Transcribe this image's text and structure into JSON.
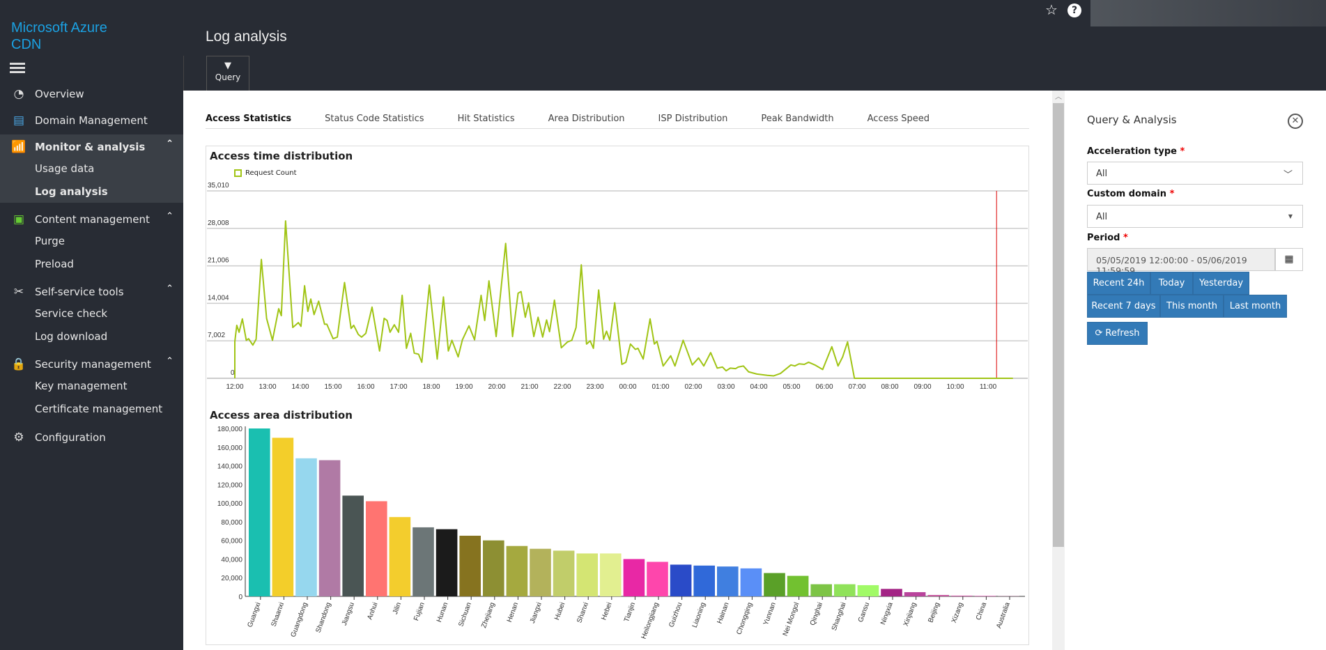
{
  "app": {
    "logo": "Microsoft Azure CDN",
    "page_title": "Log analysis",
    "query_label": "Query"
  },
  "sidebar": {
    "overview": "Overview",
    "domain": "Domain Management",
    "monitor": "Monitor & analysis",
    "usage": "Usage data",
    "log_analysis": "Log analysis",
    "content": "Content management",
    "purge": "Purge",
    "preload": "Preload",
    "self_service": "Self-service tools",
    "service_check": "Service check",
    "log_download": "Log download",
    "security": "Security management",
    "key": "Key management",
    "cert": "Certificate management",
    "config": "Configuration"
  },
  "tabs": [
    "Access Statistics",
    "Status Code Statistics",
    "Hit Statistics",
    "Area Distribution",
    "ISP Distribution",
    "Peak Bandwidth",
    "Access Speed"
  ],
  "panel": {
    "title": "Query & Analysis",
    "accel_label": "Acceleration type",
    "accel_value": "All",
    "domain_label": "Custom domain",
    "domain_value": "All",
    "period_label": "Period",
    "req": "*",
    "period_value": "05/05/2019 12:00:00 - 05/06/2019 11:59:59",
    "quick": [
      "Recent 24h",
      "Today",
      "Yesterday",
      "Recent 7 days",
      "This month",
      "Last month"
    ],
    "refresh": "Refresh",
    "accent": "#337ab7"
  },
  "chart_data": [
    {
      "type": "line",
      "title": "Access time distribution",
      "legend": [
        "Request Count"
      ],
      "color": "#a0c414",
      "yticks": [
        "0",
        "7,002",
        "14,004",
        "21,006",
        "28,008",
        "35,010"
      ],
      "ylim": [
        0,
        35010
      ],
      "xticks": [
        "12:00",
        "13:00",
        "14:00",
        "15:00",
        "16:00",
        "17:00",
        "18:00",
        "19:00",
        "20:00",
        "21:00",
        "22:00",
        "23:00",
        "00:00",
        "01:00",
        "02:00",
        "03:00",
        "04:00",
        "05:00",
        "06:00",
        "07:00",
        "08:00",
        "09:00",
        "10:00",
        "11:00"
      ],
      "x_unit": "hours since 12:00",
      "marker_hour": 23.26,
      "points": [
        [
          0,
          0
        ],
        [
          0,
          6870
        ],
        [
          0.06,
          9900
        ],
        [
          0.13,
          8600
        ],
        [
          0.23,
          11100
        ],
        [
          0.35,
          7100
        ],
        [
          0.42,
          7400
        ],
        [
          0.55,
          6200
        ],
        [
          0.65,
          7300
        ],
        [
          0.81,
          22200
        ],
        [
          0.97,
          11200
        ],
        [
          1.15,
          7100
        ],
        [
          1.34,
          13000
        ],
        [
          1.42,
          11700
        ],
        [
          1.55,
          29400
        ],
        [
          1.77,
          9500
        ],
        [
          1.94,
          10400
        ],
        [
          2.02,
          9700
        ],
        [
          2.13,
          17300
        ],
        [
          2.23,
          12500
        ],
        [
          2.32,
          14800
        ],
        [
          2.42,
          11900
        ],
        [
          2.56,
          14400
        ],
        [
          2.74,
          10100
        ],
        [
          2.81,
          10100
        ],
        [
          3.0,
          7400
        ],
        [
          3.13,
          7700
        ],
        [
          3.35,
          17900
        ],
        [
          3.55,
          9300
        ],
        [
          3.63,
          9900
        ],
        [
          3.77,
          8200
        ],
        [
          3.87,
          7700
        ],
        [
          4.0,
          8400
        ],
        [
          4.19,
          13300
        ],
        [
          4.42,
          5100
        ],
        [
          4.56,
          11200
        ],
        [
          4.65,
          10800
        ],
        [
          4.74,
          8600
        ],
        [
          4.87,
          10000
        ],
        [
          5.0,
          8600
        ],
        [
          5.11,
          15500
        ],
        [
          5.24,
          5600
        ],
        [
          5.37,
          8400
        ],
        [
          5.48,
          4700
        ],
        [
          5.61,
          4500
        ],
        [
          5.71,
          3000
        ],
        [
          5.94,
          17400
        ],
        [
          6.18,
          3600
        ],
        [
          6.37,
          15200
        ],
        [
          6.52,
          5100
        ],
        [
          6.63,
          7100
        ],
        [
          6.82,
          4000
        ],
        [
          6.95,
          7200
        ],
        [
          7.15,
          9800
        ],
        [
          7.32,
          7200
        ],
        [
          7.52,
          15500
        ],
        [
          7.63,
          10800
        ],
        [
          7.76,
          18200
        ],
        [
          7.98,
          7800
        ],
        [
          8.27,
          25200
        ],
        [
          8.48,
          7800
        ],
        [
          8.65,
          15900
        ],
        [
          8.74,
          16200
        ],
        [
          8.87,
          11400
        ],
        [
          8.97,
          14100
        ],
        [
          9.13,
          7800
        ],
        [
          9.26,
          11400
        ],
        [
          9.4,
          7700
        ],
        [
          9.52,
          10900
        ],
        [
          9.61,
          8700
        ],
        [
          9.76,
          14600
        ],
        [
          9.97,
          5700
        ],
        [
          10.16,
          6800
        ],
        [
          10.29,
          7100
        ],
        [
          10.42,
          9500
        ],
        [
          10.58,
          21200
        ],
        [
          10.74,
          6400
        ],
        [
          10.85,
          7000
        ],
        [
          10.95,
          5600
        ],
        [
          11.11,
          16500
        ],
        [
          11.26,
          7300
        ],
        [
          11.35,
          8800
        ],
        [
          11.45,
          7100
        ],
        [
          11.6,
          14100
        ],
        [
          11.82,
          2600
        ],
        [
          11.94,
          3000
        ],
        [
          12.08,
          6400
        ],
        [
          12.23,
          5400
        ],
        [
          12.31,
          5600
        ],
        [
          12.47,
          3600
        ],
        [
          12.68,
          11100
        ],
        [
          12.81,
          6400
        ],
        [
          12.89,
          6900
        ],
        [
          13.08,
          2300
        ],
        [
          13.31,
          4200
        ],
        [
          13.44,
          2300
        ],
        [
          13.69,
          7100
        ],
        [
          13.97,
          2500
        ],
        [
          14.16,
          3800
        ],
        [
          14.32,
          2300
        ],
        [
          14.53,
          4800
        ],
        [
          14.73,
          1900
        ],
        [
          14.89,
          2100
        ],
        [
          15.0,
          1400
        ],
        [
          15.13,
          1900
        ],
        [
          15.29,
          1800
        ],
        [
          15.37,
          2100
        ],
        [
          15.53,
          2300
        ],
        [
          15.69,
          1200
        ],
        [
          15.94,
          800
        ],
        [
          16.26,
          550
        ],
        [
          16.45,
          450
        ],
        [
          16.66,
          900
        ],
        [
          16.98,
          2500
        ],
        [
          17.1,
          2300
        ],
        [
          17.23,
          2700
        ],
        [
          17.39,
          2600
        ],
        [
          17.52,
          3000
        ],
        [
          17.71,
          2500
        ],
        [
          17.95,
          1650
        ],
        [
          18.23,
          5900
        ],
        [
          18.42,
          2300
        ],
        [
          18.56,
          4000
        ],
        [
          18.71,
          6800
        ],
        [
          18.92,
          0
        ],
        [
          23.76,
          0
        ]
      ]
    },
    {
      "type": "bar",
      "title": "Access area distribution",
      "ylim": [
        0,
        180000
      ],
      "yticks": [
        "0",
        "20,000",
        "40,000",
        "60,000",
        "80,000",
        "100,000",
        "120,000",
        "140,000",
        "160,000",
        "180,000"
      ],
      "categories": [
        "Guangxi",
        "Shaanxi",
        "Guangdong",
        "Shandong",
        "Jiangsu",
        "Anhui",
        "Jilin",
        "Fujian",
        "Hunan",
        "Sichuan",
        "Zhejiang",
        "Henan",
        "Jiangxi",
        "Hubei",
        "Shanxi",
        "Hebei",
        "Tianjin",
        "Heilongjiang",
        "Guizhou",
        "Liaoning",
        "Hainan",
        "Chongqing",
        "Yunnan",
        "Nei Mongol",
        "Qinghai",
        "Shanghai",
        "Gansu",
        "Ningxia",
        "Xinjiang",
        "Beijing",
        "Xizang",
        "China",
        "Australia"
      ],
      "values": [
        180000,
        170000,
        148000,
        146000,
        108000,
        102000,
        85000,
        74000,
        72000,
        65000,
        60000,
        54000,
        51000,
        49000,
        46000,
        46000,
        40000,
        37000,
        34000,
        33000,
        32000,
        30000,
        25000,
        22000,
        13000,
        13000,
        12000,
        8000,
        4500,
        1500,
        800,
        600,
        200
      ],
      "colors": [
        "#1abfb0",
        "#f3ce2a",
        "#96d7ee",
        "#b07aa5",
        "#4a5554",
        "#ff7471",
        "#f3cd2d",
        "#6c7677",
        "#1b1b1b",
        "#86731f",
        "#8d8f33",
        "#a5a93f",
        "#b3b25b",
        "#c1cd6a",
        "#d4e573",
        "#e2ef90",
        "#e828a5",
        "#fe46ac",
        "#2a4bc8",
        "#3069d9",
        "#407fe0",
        "#5a8ff7",
        "#5aa028",
        "#72c130",
        "#7dc446",
        "#90e25a",
        "#a1fa67",
        "#a32485",
        "#b9449c",
        "#c7589f",
        "#d35fab",
        "#de6ab6",
        "#e37cbb"
      ]
    }
  ]
}
